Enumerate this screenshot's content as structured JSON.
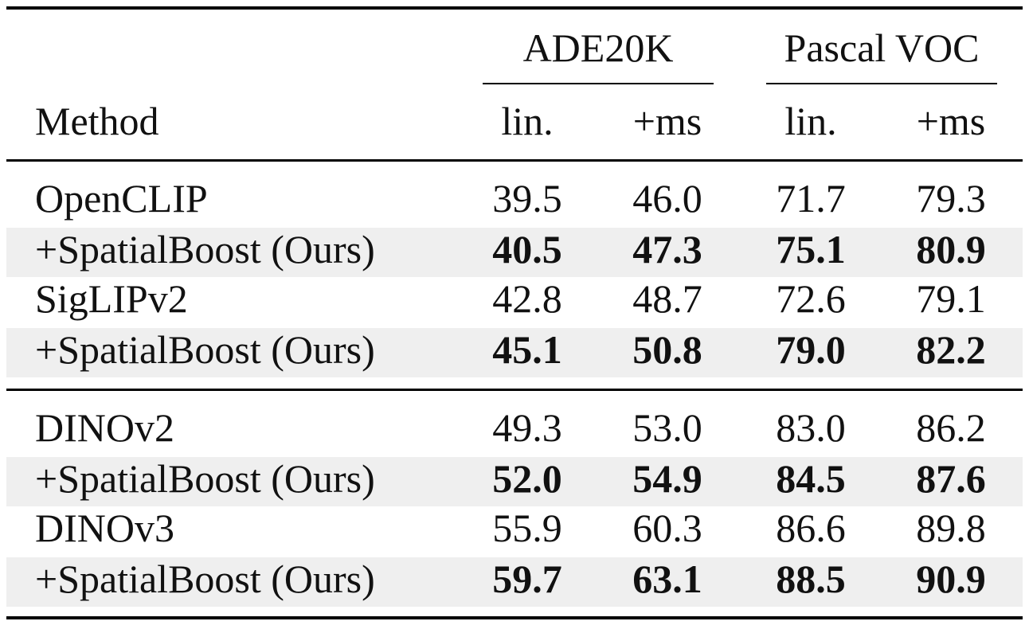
{
  "table": {
    "header": {
      "method_label": "Method",
      "groups": [
        {
          "name": "ADE20K",
          "subcols": [
            "lin.",
            "+ms"
          ]
        },
        {
          "name": "Pascal VOC",
          "subcols": [
            "lin.",
            "+ms"
          ]
        }
      ]
    },
    "sections": [
      {
        "rows": [
          {
            "method": "OpenCLIP",
            "values": [
              "39.5",
              "46.0",
              "71.7",
              "79.3"
            ],
            "bold": false,
            "shaded": false
          },
          {
            "method": "+SpatialBoost (Ours)",
            "values": [
              "40.5",
              "47.3",
              "75.1",
              "80.9"
            ],
            "bold": true,
            "shaded": true
          },
          {
            "method": "SigLIPv2",
            "values": [
              "42.8",
              "48.7",
              "72.6",
              "79.1"
            ],
            "bold": false,
            "shaded": false
          },
          {
            "method": "+SpatialBoost (Ours)",
            "values": [
              "45.1",
              "50.8",
              "79.0",
              "82.2"
            ],
            "bold": true,
            "shaded": true
          }
        ]
      },
      {
        "rows": [
          {
            "method": "DINOv2",
            "values": [
              "49.3",
              "53.0",
              "83.0",
              "86.2"
            ],
            "bold": false,
            "shaded": false
          },
          {
            "method": "+SpatialBoost (Ours)",
            "values": [
              "52.0",
              "54.9",
              "84.5",
              "87.6"
            ],
            "bold": true,
            "shaded": true
          },
          {
            "method": "DINOv3",
            "values": [
              "55.9",
              "60.3",
              "86.6",
              "89.8"
            ],
            "bold": false,
            "shaded": false
          },
          {
            "method": "+SpatialBoost (Ours)",
            "values": [
              "59.7",
              "63.1",
              "88.5",
              "90.9"
            ],
            "bold": true,
            "shaded": true
          }
        ]
      }
    ]
  }
}
